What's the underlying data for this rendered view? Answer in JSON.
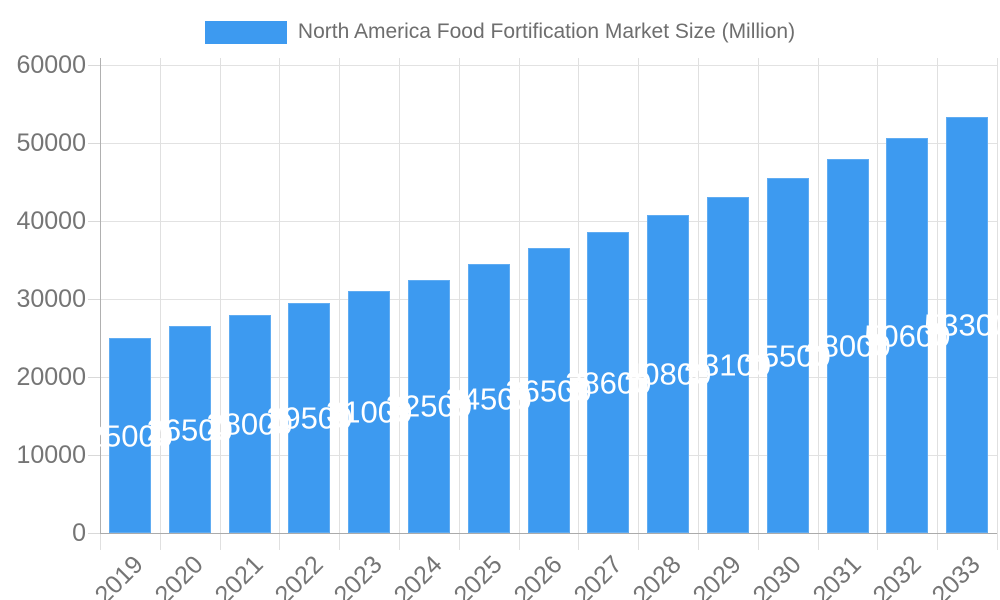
{
  "legend": {
    "label": "North America Food Fortification Market Size (Million)"
  },
  "chart_data": {
    "type": "bar",
    "title": "North America Food Fortification Market Size (Million)",
    "categories": [
      "2019",
      "2020",
      "2021",
      "2022",
      "2023",
      "2024",
      "2025",
      "2026",
      "2027",
      "2028",
      "2029",
      "2030",
      "2031",
      "2032",
      "2033"
    ],
    "values": [
      25000,
      26500,
      28000,
      29500,
      31000,
      32500,
      34500,
      36500,
      38600,
      40800,
      43100,
      45500,
      48000,
      50600,
      53300
    ],
    "xlabel": "",
    "ylabel": "",
    "ylim": [
      0,
      60000
    ],
    "yticks": [
      0,
      10000,
      20000,
      30000,
      40000,
      50000,
      60000
    ],
    "grid": true,
    "legend_position": "top",
    "bar_labels_inside": true,
    "colors": {
      "bar": "#3d9af0",
      "bar_label": "#ffffff",
      "axis_text": "#757575",
      "legend_text": "#6e6e6e",
      "gridline": "#e2e2e2",
      "axis_line": "#ababab"
    }
  }
}
